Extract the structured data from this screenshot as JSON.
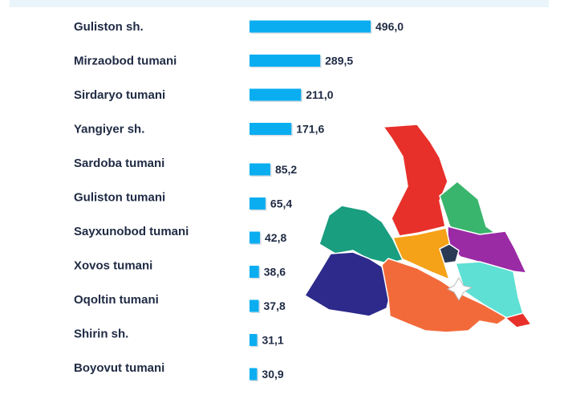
{
  "chart_data": {
    "type": "bar",
    "orientation": "horizontal",
    "categories": [
      "Guliston sh.",
      "Mirzaobod tumani",
      "Sirdaryo tumani",
      "Yangiyer sh.",
      "Sardoba tumani",
      "Guliston tumani",
      "Sayxunobod tumani",
      "Xovos tumani",
      "Oqoltin tumani",
      "Shirin sh.",
      "Boyovut tumani"
    ],
    "values": [
      496.0,
      289.5,
      211.0,
      171.6,
      85.2,
      65.4,
      42.8,
      38.6,
      37.8,
      31.1,
      30.9
    ],
    "value_labels": [
      "496,0",
      "289,5",
      "211,0",
      "171,6",
      "85,2",
      "65,4",
      "42,8",
      "38,6",
      "37,8",
      "31,1",
      "30,9"
    ],
    "bar_color": "#0aaef0",
    "xlim": [
      0,
      496
    ],
    "grid": false,
    "legend": "none"
  },
  "map": {
    "colors": {
      "red": "#e8302a",
      "green": "#3ab56d",
      "teal": "#1a9e80",
      "orange": "#f5a218",
      "purple": "#9b2aa5",
      "navy": "#2d2a8c",
      "coral": "#f36a3a",
      "cyan": "#5ee0d4",
      "dark": "#2a3a55",
      "white": "#ffffff"
    }
  },
  "colors": {
    "text": "#1f2a44",
    "top_band": "#eaf4fb"
  }
}
